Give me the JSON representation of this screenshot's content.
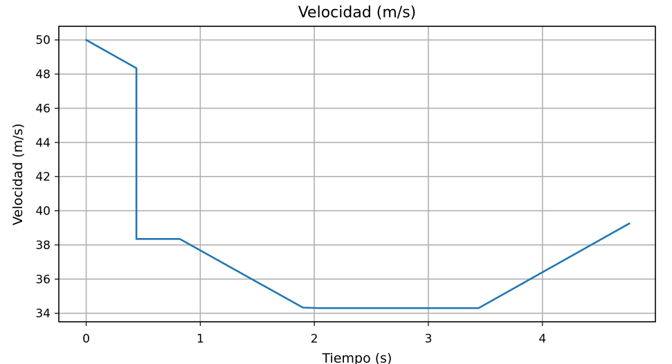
{
  "chart_data": {
    "type": "line",
    "title": "Velocidad (m/s)",
    "xlabel": "Tiempo (s)",
    "ylabel": "Velocidad (m/s)",
    "xlim": [
      -0.24,
      4.99
    ],
    "ylim": [
      33.5,
      50.8
    ],
    "xticks": [
      0,
      1,
      2,
      3,
      4
    ],
    "yticks": [
      34,
      36,
      38,
      40,
      42,
      44,
      46,
      48,
      50
    ],
    "grid": true,
    "series": [
      {
        "color": "#1f77b4",
        "x": [
          0,
          0.44,
          0.44,
          0.82,
          1.9,
          2.05,
          3.44,
          4.76
        ],
        "y": [
          50.0,
          48.35,
          38.35,
          38.35,
          34.33,
          34.3,
          34.3,
          39.25
        ]
      }
    ]
  }
}
